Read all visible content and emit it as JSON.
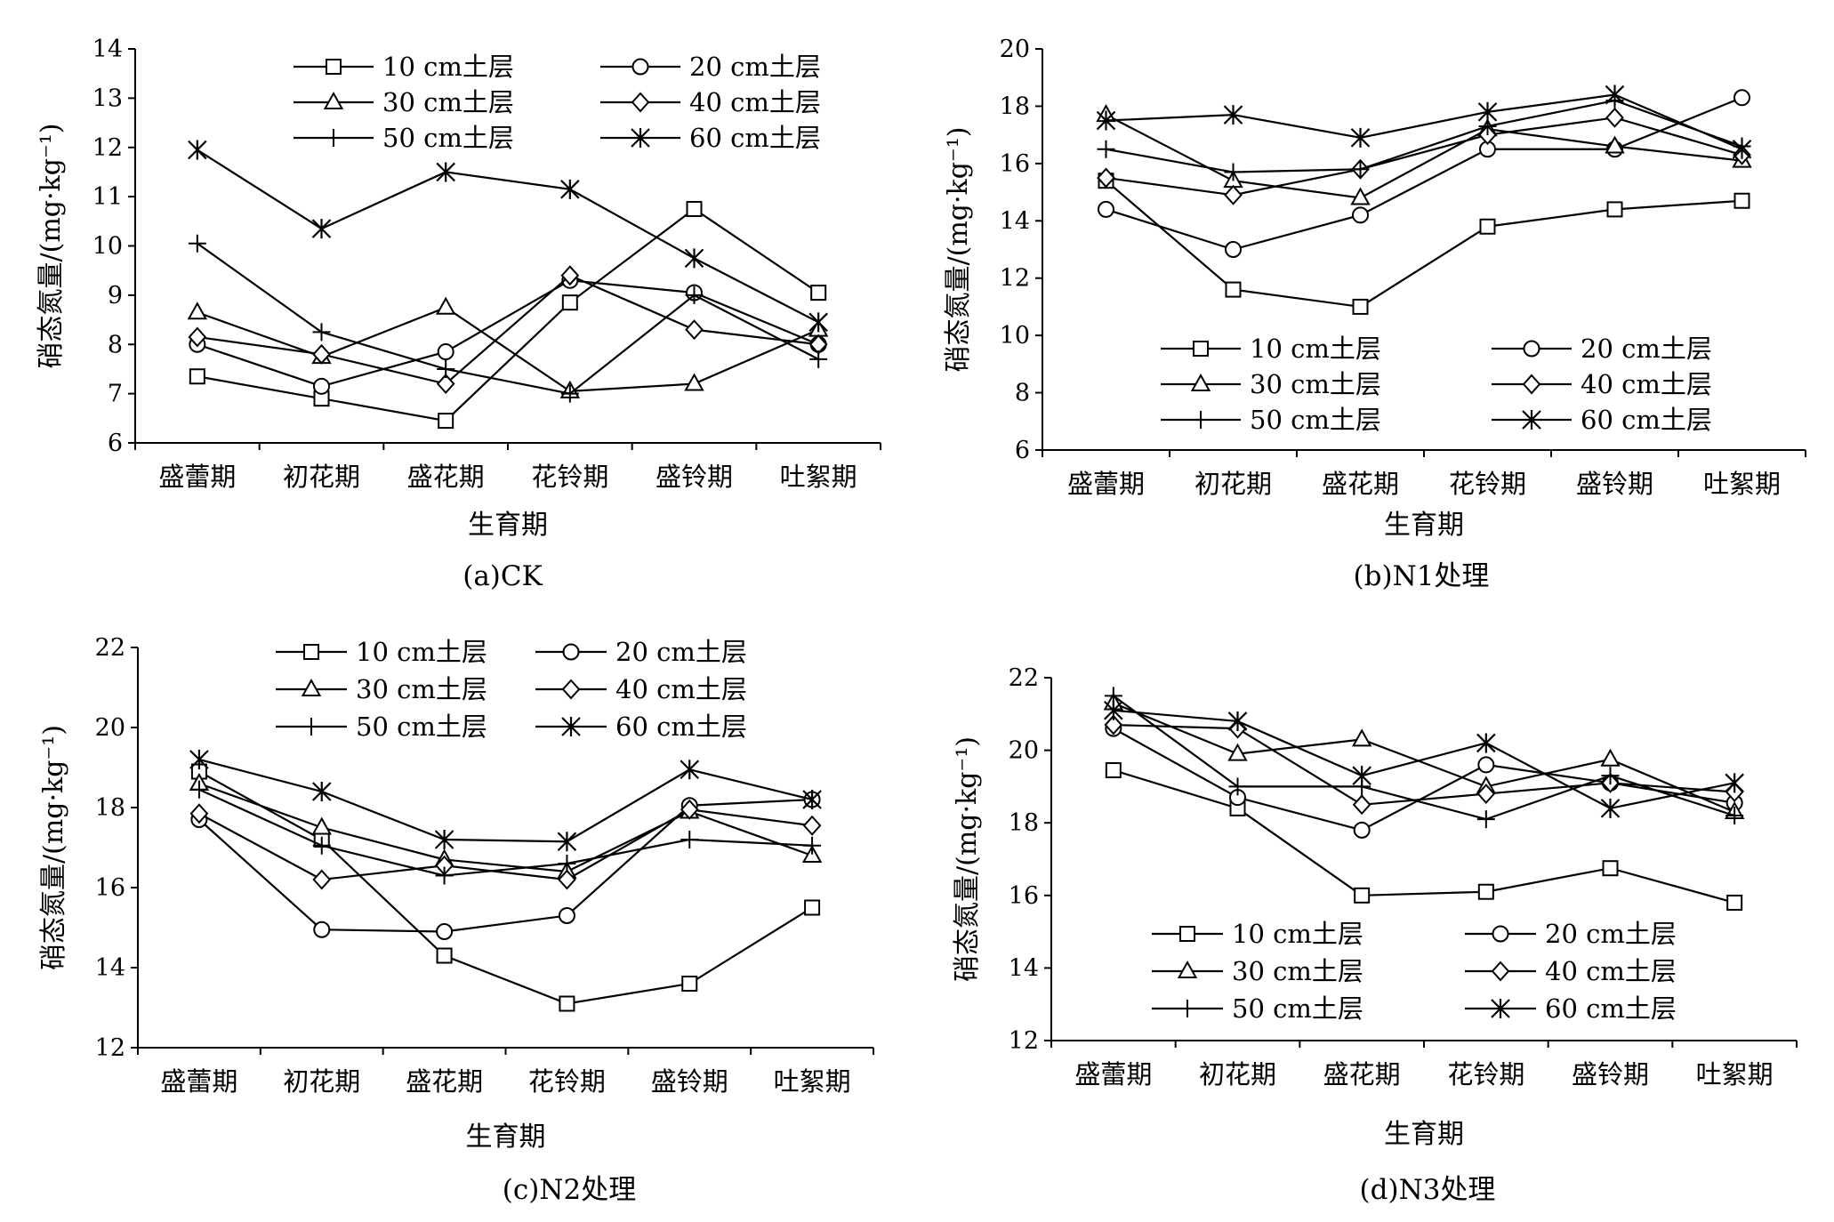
{
  "chart_data": [
    {
      "type": "line",
      "caption": "(a)CK",
      "xlabel": "生育期",
      "ylabel": "硝态氮量/(mg·kg⁻¹)",
      "ylim": [
        6,
        14
      ],
      "yticks": [
        "6",
        "7",
        "8",
        "9",
        "10",
        "11",
        "12",
        "13",
        "14"
      ],
      "categories": [
        "盛蕾期",
        "初花期",
        "盛花期",
        "花铃期",
        "盛铃期",
        "吐絮期"
      ],
      "series": [
        {
          "name": "10 cm土层",
          "marker": "square",
          "values": [
            7.35,
            6.9,
            6.45,
            8.85,
            10.75,
            9.05
          ]
        },
        {
          "name": "20 cm土层",
          "marker": "circle",
          "values": [
            8.0,
            7.15,
            7.85,
            9.3,
            9.05,
            8.0
          ]
        },
        {
          "name": "30 cm土层",
          "marker": "triangle",
          "values": [
            8.65,
            7.75,
            8.75,
            7.05,
            7.2,
            8.3
          ]
        },
        {
          "name": "40 cm土层",
          "marker": "diamond",
          "values": [
            8.15,
            7.8,
            7.2,
            9.4,
            8.3,
            8.0
          ]
        },
        {
          "name": "50 cm土层",
          "marker": "plus",
          "values": [
            10.05,
            8.25,
            7.5,
            7.0,
            9.0,
            7.7
          ]
        },
        {
          "name": "60 cm土层",
          "marker": "asterisk",
          "values": [
            11.95,
            10.35,
            11.5,
            11.15,
            9.75,
            8.45
          ]
        }
      ],
      "legend": "top, two columns"
    },
    {
      "type": "line",
      "caption": "(b)N1处理",
      "xlabel": "生育期",
      "ylabel": "硝态氮量/(mg·kg⁻¹)",
      "ylim": [
        6,
        20
      ],
      "yticks": [
        "6",
        "8",
        "10",
        "12",
        "14",
        "16",
        "18",
        "20"
      ],
      "categories": [
        "盛蕾期",
        "初花期",
        "盛花期",
        "花铃期",
        "盛铃期",
        "吐絮期"
      ],
      "series": [
        {
          "name": "10 cm土层",
          "marker": "square",
          "values": [
            15.4,
            11.6,
            11.0,
            13.8,
            14.4,
            14.7
          ]
        },
        {
          "name": "20 cm土层",
          "marker": "circle",
          "values": [
            14.4,
            13.0,
            14.2,
            16.5,
            16.5,
            18.3
          ]
        },
        {
          "name": "30 cm土层",
          "marker": "triangle",
          "values": [
            17.7,
            15.4,
            14.8,
            17.2,
            16.6,
            16.1
          ]
        },
        {
          "name": "40 cm土层",
          "marker": "diamond",
          "values": [
            15.5,
            14.9,
            15.8,
            17.0,
            17.6,
            16.3
          ]
        },
        {
          "name": "50 cm土层",
          "marker": "plus",
          "values": [
            16.5,
            15.7,
            15.8,
            17.3,
            18.2,
            16.6
          ]
        },
        {
          "name": "60 cm土层",
          "marker": "asterisk",
          "values": [
            17.5,
            17.7,
            16.9,
            17.8,
            18.4,
            16.5
          ]
        }
      ],
      "legend": "bottom, two columns"
    },
    {
      "type": "line",
      "caption": "(c)N2处理",
      "xlabel": "生育期",
      "ylabel": "硝态氮量/(mg·kg⁻¹)",
      "ylim": [
        12,
        22
      ],
      "yticks": [
        "12",
        "14",
        "16",
        "18",
        "20",
        "22"
      ],
      "categories": [
        "盛蕾期",
        "初花期",
        "盛花期",
        "花铃期",
        "盛铃期",
        "吐絮期"
      ],
      "series": [
        {
          "name": "10 cm土层",
          "marker": "square",
          "values": [
            18.9,
            17.2,
            14.3,
            13.1,
            13.6,
            15.5
          ]
        },
        {
          "name": "20 cm土层",
          "marker": "circle",
          "values": [
            17.7,
            14.95,
            14.9,
            15.3,
            18.05,
            18.2
          ]
        },
        {
          "name": "30 cm土层",
          "marker": "triangle",
          "values": [
            18.6,
            17.5,
            16.7,
            16.4,
            17.9,
            16.8
          ]
        },
        {
          "name": "40 cm土层",
          "marker": "diamond",
          "values": [
            17.85,
            16.2,
            16.55,
            16.2,
            17.95,
            17.55
          ]
        },
        {
          "name": "50 cm土层",
          "marker": "plus",
          "values": [
            18.45,
            17.05,
            16.3,
            16.6,
            17.2,
            17.05
          ]
        },
        {
          "name": "60 cm土层",
          "marker": "asterisk",
          "values": [
            19.2,
            18.4,
            17.2,
            17.15,
            18.95,
            18.2
          ]
        }
      ],
      "legend": "top, two columns"
    },
    {
      "type": "line",
      "caption": "(d)N3处理",
      "xlabel": "生育期",
      "ylabel": "硝态氮量/(mg·kg⁻¹)",
      "ylim": [
        12,
        22
      ],
      "yticks": [
        "12",
        "14",
        "16",
        "18",
        "20",
        "22"
      ],
      "categories": [
        "盛蕾期",
        "初花期",
        "盛花期",
        "花铃期",
        "盛铃期",
        "吐絮期"
      ],
      "series": [
        {
          "name": "10 cm土层",
          "marker": "square",
          "values": [
            19.45,
            18.4,
            16.0,
            16.1,
            16.75,
            15.8
          ]
        },
        {
          "name": "20 cm土层",
          "marker": "circle",
          "values": [
            20.6,
            18.7,
            17.8,
            19.6,
            19.1,
            18.55
          ]
        },
        {
          "name": "30 cm土层",
          "marker": "triangle",
          "values": [
            21.3,
            19.9,
            20.3,
            19.0,
            19.75,
            18.3
          ]
        },
        {
          "name": "40 cm土层",
          "marker": "diamond",
          "values": [
            20.7,
            20.6,
            18.5,
            18.8,
            19.1,
            18.85
          ]
        },
        {
          "name": "50 cm土层",
          "marker": "plus",
          "values": [
            21.5,
            19.0,
            19.0,
            18.1,
            19.3,
            18.2
          ]
        },
        {
          "name": "60 cm土层",
          "marker": "asterisk",
          "values": [
            21.1,
            20.8,
            19.3,
            20.2,
            18.4,
            19.1
          ]
        }
      ],
      "legend": "bottom, two columns"
    }
  ]
}
